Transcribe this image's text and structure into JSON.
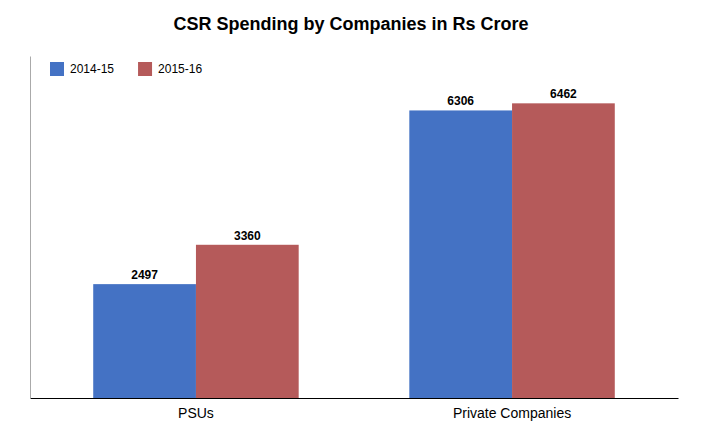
{
  "chart_data": {
    "type": "bar",
    "title": "CSR Spending by Companies in Rs Crore",
    "categories": [
      "PSUs",
      "Private Companies"
    ],
    "series": [
      {
        "name": "2014-15",
        "color": "#4472C4",
        "values": [
          2497,
          6306
        ]
      },
      {
        "name": "2015-16",
        "color": "#B55A5A",
        "values": [
          3360,
          6462
        ]
      }
    ],
    "ylim": [
      0,
      7500
    ],
    "grid": false,
    "legend": "upper left",
    "data_labels": true,
    "tick_labels": "x"
  }
}
